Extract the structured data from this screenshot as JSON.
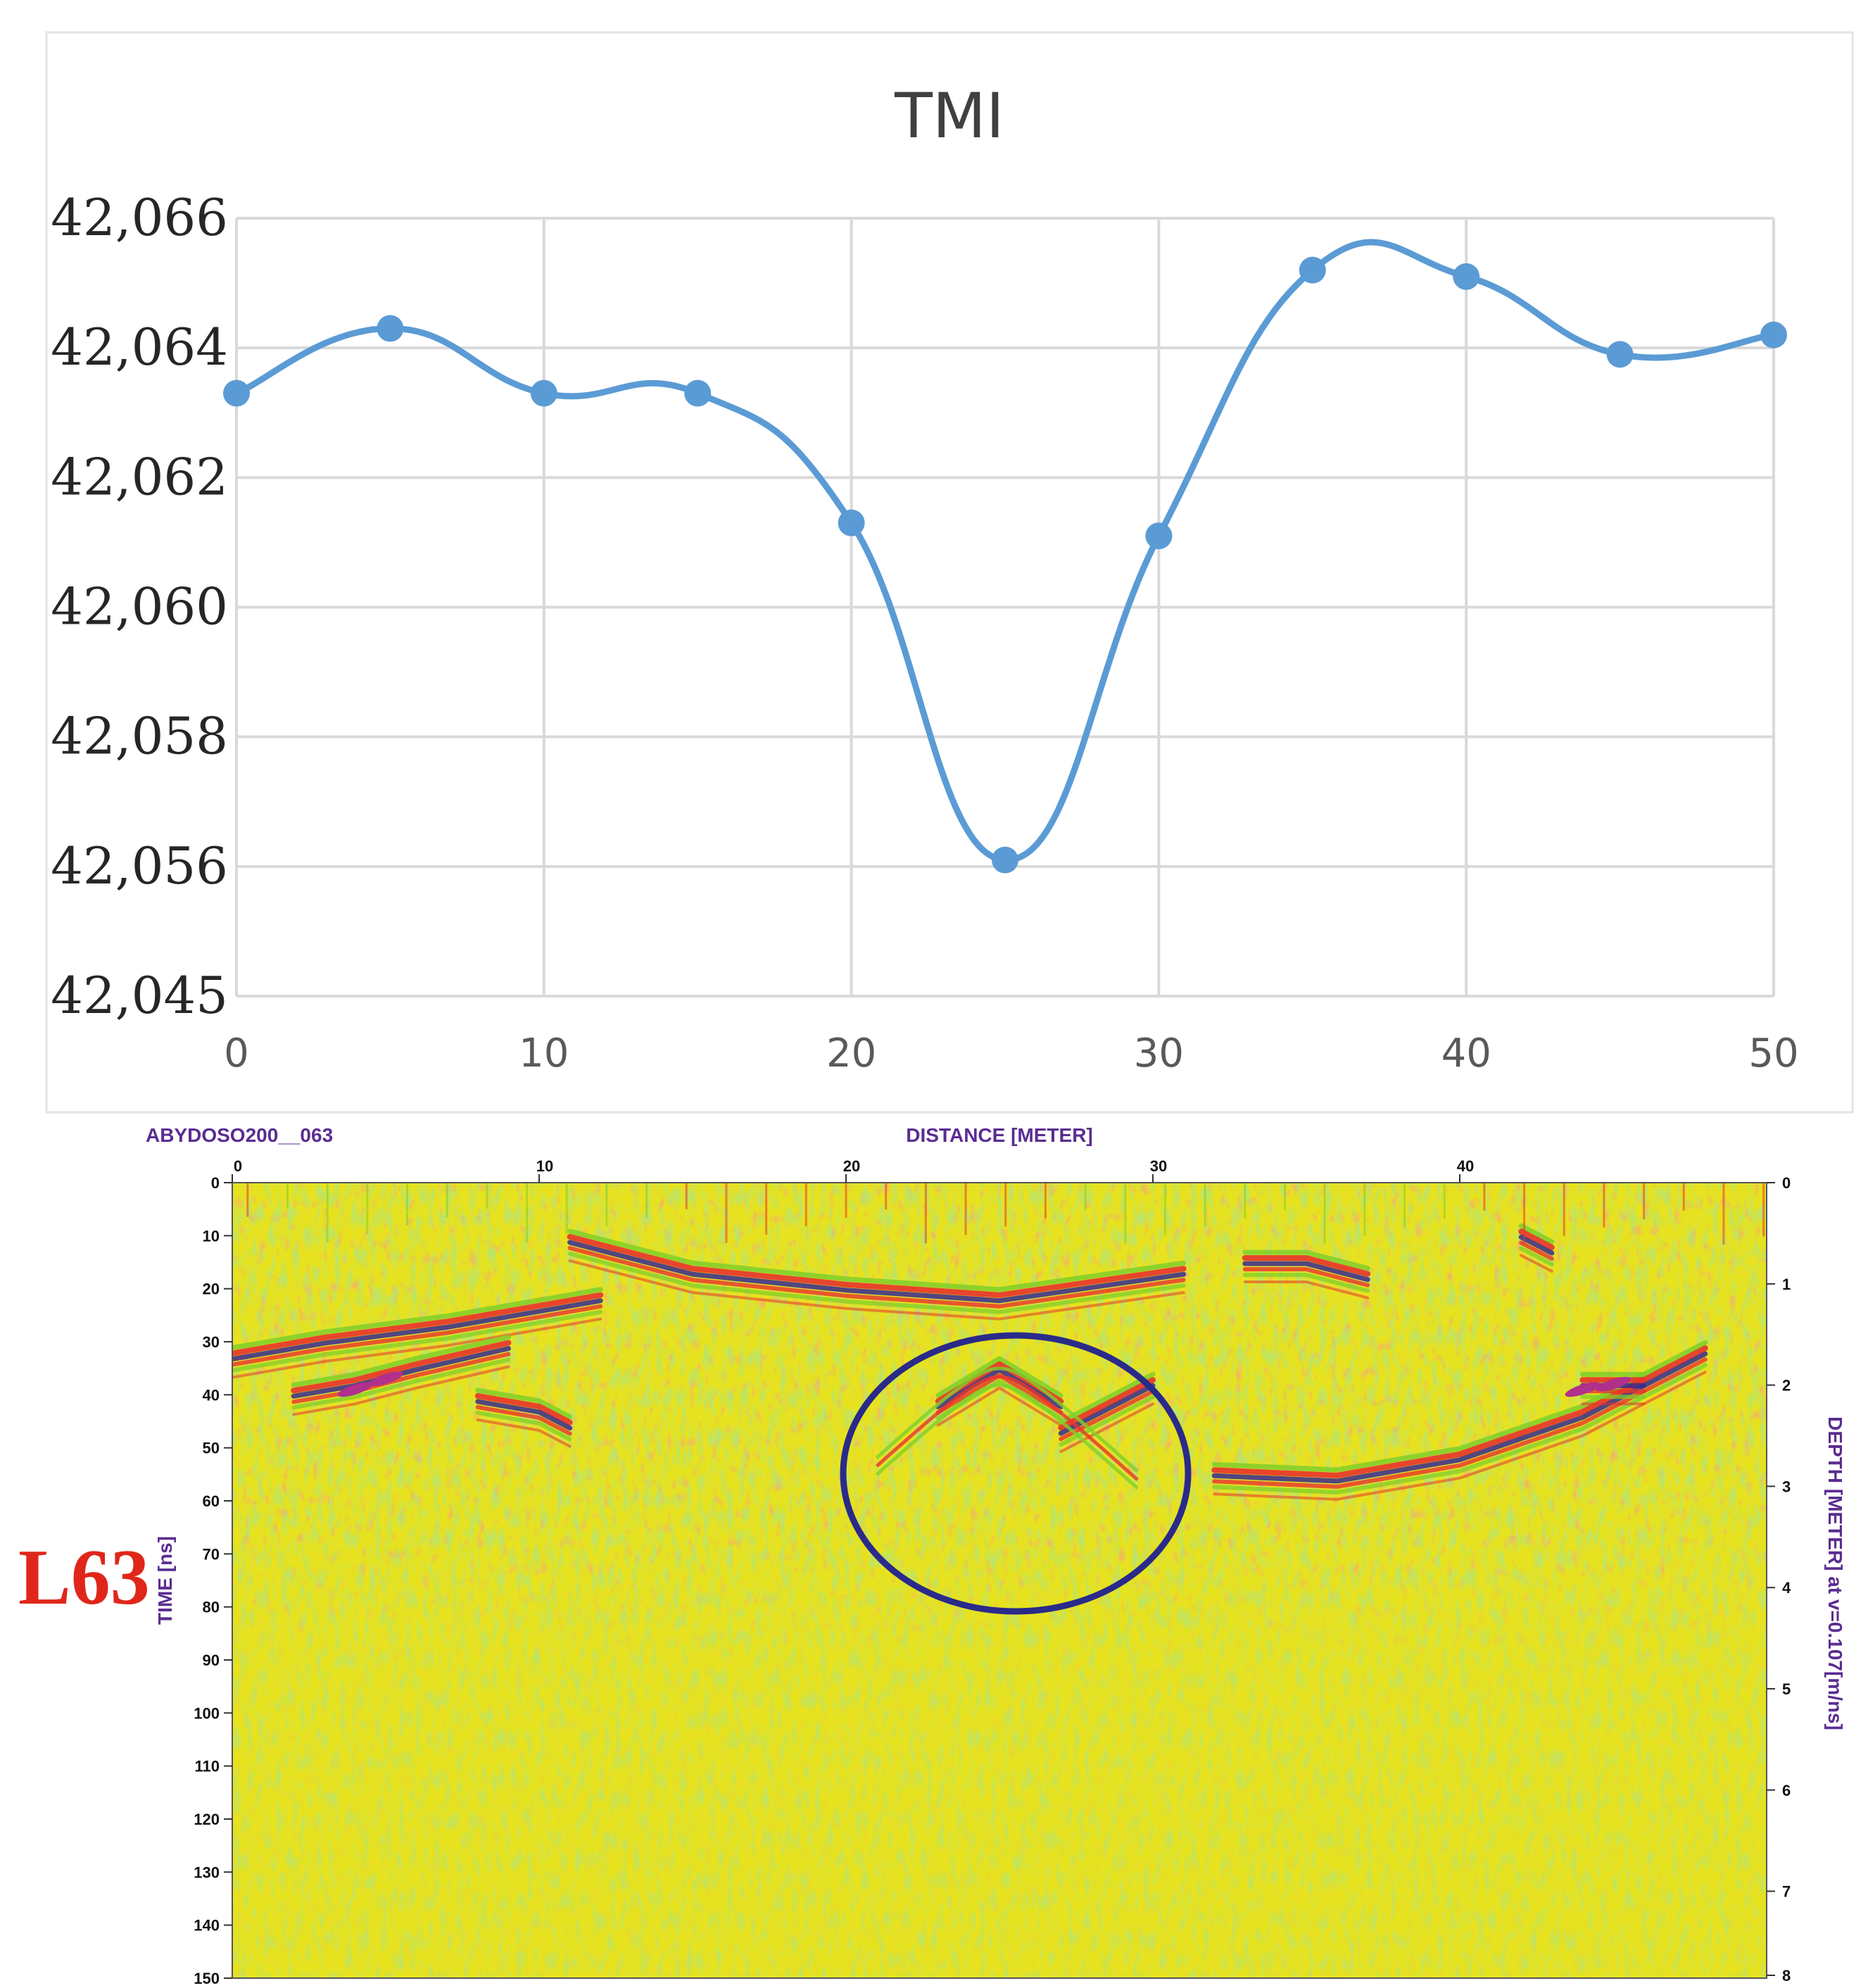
{
  "chart_data": [
    {
      "type": "line",
      "title": "TMI",
      "smooth": true,
      "grid": true,
      "legend": "none",
      "x": [
        0,
        5,
        10,
        15,
        20,
        25,
        30,
        35,
        40,
        45,
        50
      ],
      "y": [
        42063.3,
        42064.3,
        42063.3,
        42063.3,
        42061.3,
        42056.1,
        42061.1,
        42065.2,
        42065.1,
        42063.9,
        42064.2
      ],
      "xticks": [
        "0",
        "10",
        "20",
        "30",
        "40",
        "50"
      ],
      "yticks": [
        "42,045",
        "42,056",
        "42,058",
        "42,060",
        "42,062",
        "42,064",
        "42,066"
      ],
      "xlim": [
        0,
        50
      ],
      "line_color": "#5b9bd5",
      "grid_color": "#d9d9d9"
    },
    {
      "type": "heatmap",
      "title": "ABYDOSO200__063",
      "xlabel": "DISTANCE [METER]",
      "ylabel": "TIME [ns]",
      "y2label": "DEPTH [METER] at v=0.107[m/ns]",
      "xticks": [
        "0",
        "10",
        "20",
        "30",
        "40"
      ],
      "yticks": [
        "0",
        "10",
        "20",
        "30",
        "40",
        "50",
        "60",
        "70",
        "80",
        "90",
        "100",
        "110",
        "120",
        "130",
        "140",
        "150"
      ],
      "y2ticks": [
        "0",
        "1",
        "2",
        "3",
        "4",
        "5",
        "6",
        "7",
        "8"
      ],
      "xlim": [
        0,
        50
      ],
      "ylim": [
        0,
        150
      ],
      "y2lim": [
        0,
        8
      ],
      "colormap": [
        "#e8e21e",
        "#7fcf2a",
        "#e8342a",
        "#3a2a8c",
        "#b0308c"
      ],
      "line_label": "L63",
      "highlight_color": "#2a2a8a",
      "reflectors": [
        {
          "x": [
            0,
            3,
            7,
            10,
            12
          ],
          "t": [
            33,
            30,
            27,
            24,
            22
          ]
        },
        {
          "x": [
            2,
            4,
            6,
            9
          ],
          "t": [
            40,
            38,
            35,
            31
          ]
        },
        {
          "x": [
            8,
            10,
            11
          ],
          "t": [
            41,
            43,
            46
          ]
        },
        {
          "x": [
            11,
            15,
            20,
            25,
            31
          ],
          "t": [
            11,
            17,
            20,
            22,
            17
          ]
        },
        {
          "x": [
            23,
            25,
            27
          ],
          "t": [
            42,
            35,
            42
          ]
        },
        {
          "x": [
            27,
            28,
            30
          ],
          "t": [
            47,
            44,
            38
          ]
        },
        {
          "x": [
            32,
            36,
            40,
            44,
            48
          ],
          "t": [
            55,
            56,
            52,
            44,
            32
          ]
        },
        {
          "x": [
            33,
            35,
            37
          ],
          "t": [
            15,
            15,
            18
          ]
        },
        {
          "x": [
            42,
            43
          ],
          "t": [
            10,
            13
          ]
        },
        {
          "x": [
            44,
            46
          ],
          "t": [
            38,
            38
          ]
        }
      ]
    }
  ]
}
